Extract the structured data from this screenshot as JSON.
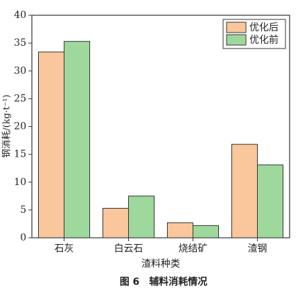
{
  "chart_data": {
    "type": "bar",
    "caption": "图 6　辅料消耗情况",
    "xlabel": "渣料种类",
    "ylabel": "钢消耗/(kg·t⁻¹)",
    "categories": [
      "石灰",
      "白云石",
      "烧结矿",
      "渣钢"
    ],
    "series": [
      {
        "name": "优化后",
        "color": "#f9c79b",
        "values": [
          33.4,
          5.3,
          2.7,
          16.8
        ]
      },
      {
        "name": "优化前",
        "color": "#9ed89c",
        "values": [
          35.3,
          7.5,
          2.2,
          13.1
        ]
      }
    ],
    "ylim": [
      0,
      40
    ],
    "yticks": [
      0,
      5,
      10,
      15,
      20,
      25,
      30,
      35,
      40
    ],
    "legend": "upper right"
  }
}
